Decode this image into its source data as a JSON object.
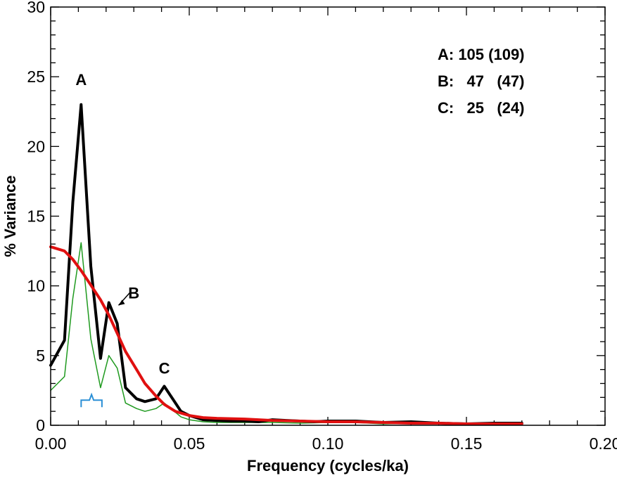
{
  "chart_data": {
    "type": "line",
    "xlabel": "Frequency (cycles/ka)",
    "ylabel": "% Variance",
    "xlim": [
      0,
      0.2
    ],
    "ylim": [
      0,
      30
    ],
    "x_ticks": [
      "0.00",
      "0.05",
      "0.10",
      "0.15",
      "0.20"
    ],
    "y_ticks": [
      "0",
      "5",
      "10",
      "15",
      "20",
      "25",
      "30"
    ],
    "grid": false,
    "series": [
      {
        "color": "#000000",
        "points": [
          [
            0.0,
            4.3
          ],
          [
            0.005,
            6.1
          ],
          [
            0.008,
            16.0
          ],
          [
            0.011,
            23.0
          ],
          [
            0.0145,
            11.4
          ],
          [
            0.018,
            4.8
          ],
          [
            0.021,
            8.8
          ],
          [
            0.024,
            7.3
          ],
          [
            0.027,
            2.7
          ],
          [
            0.031,
            1.9
          ],
          [
            0.034,
            1.7
          ],
          [
            0.038,
            1.9
          ],
          [
            0.041,
            2.8
          ],
          [
            0.044,
            1.9
          ],
          [
            0.047,
            1.0
          ],
          [
            0.05,
            0.7
          ],
          [
            0.055,
            0.4
          ],
          [
            0.06,
            0.35
          ],
          [
            0.065,
            0.3
          ],
          [
            0.07,
            0.3
          ],
          [
            0.075,
            0.25
          ],
          [
            0.08,
            0.4
          ],
          [
            0.085,
            0.35
          ],
          [
            0.09,
            0.3
          ],
          [
            0.095,
            0.25
          ],
          [
            0.1,
            0.3
          ],
          [
            0.11,
            0.3
          ],
          [
            0.12,
            0.2
          ],
          [
            0.13,
            0.25
          ],
          [
            0.14,
            0.15
          ],
          [
            0.15,
            0.1
          ],
          [
            0.16,
            0.15
          ],
          [
            0.17,
            0.15
          ]
        ]
      },
      {
        "color": "#1f9a1f",
        "points": [
          [
            0.0,
            2.5
          ],
          [
            0.005,
            3.5
          ],
          [
            0.008,
            9.1
          ],
          [
            0.011,
            13.1
          ],
          [
            0.0145,
            6.2
          ],
          [
            0.018,
            2.7
          ],
          [
            0.021,
            5.0
          ],
          [
            0.024,
            4.1
          ],
          [
            0.027,
            1.6
          ],
          [
            0.031,
            1.2
          ],
          [
            0.034,
            1.0
          ],
          [
            0.038,
            1.2
          ],
          [
            0.041,
            1.6
          ],
          [
            0.044,
            1.1
          ],
          [
            0.047,
            0.6
          ],
          [
            0.05,
            0.4
          ],
          [
            0.055,
            0.25
          ],
          [
            0.06,
            0.2
          ],
          [
            0.065,
            0.2
          ],
          [
            0.07,
            0.2
          ],
          [
            0.08,
            0.2
          ],
          [
            0.09,
            0.15
          ],
          [
            0.1,
            0.2
          ],
          [
            0.11,
            0.2
          ],
          [
            0.12,
            0.1
          ],
          [
            0.13,
            0.15
          ],
          [
            0.14,
            0.1
          ],
          [
            0.15,
            0.05
          ],
          [
            0.16,
            0.1
          ],
          [
            0.17,
            0.1
          ]
        ]
      },
      {
        "color": "#e01010",
        "points": [
          [
            0.0,
            12.8
          ],
          [
            0.005,
            12.5
          ],
          [
            0.008,
            11.9
          ],
          [
            0.011,
            11.1
          ],
          [
            0.014,
            10.2
          ],
          [
            0.018,
            9.0
          ],
          [
            0.021,
            7.9
          ],
          [
            0.024,
            6.6
          ],
          [
            0.027,
            5.3
          ],
          [
            0.031,
            4.0
          ],
          [
            0.034,
            3.0
          ],
          [
            0.038,
            2.1
          ],
          [
            0.041,
            1.5
          ],
          [
            0.045,
            1.0
          ],
          [
            0.05,
            0.7
          ],
          [
            0.055,
            0.55
          ],
          [
            0.06,
            0.5
          ],
          [
            0.07,
            0.45
          ],
          [
            0.08,
            0.35
          ],
          [
            0.09,
            0.3
          ],
          [
            0.1,
            0.25
          ],
          [
            0.11,
            0.25
          ],
          [
            0.12,
            0.2
          ],
          [
            0.13,
            0.15
          ],
          [
            0.14,
            0.15
          ],
          [
            0.15,
            0.1
          ],
          [
            0.16,
            0.1
          ],
          [
            0.17,
            0.1
          ]
        ]
      }
    ],
    "annotations": {
      "peaks": [
        {
          "label": "A",
          "x": 0.011,
          "y": 24.4
        },
        {
          "label": "B",
          "x": 0.03,
          "y": 9.1
        },
        {
          "label": "C",
          "x": 0.041,
          "y": 3.7
        }
      ],
      "legend_lines": [
        "A: 105 (109)",
        "B:   47   (47)",
        "C:   25   (24)"
      ],
      "bracket": {
        "x0": 0.011,
        "x1": 0.0185,
        "y": 1.8,
        "color": "#2a8fd6"
      }
    }
  }
}
